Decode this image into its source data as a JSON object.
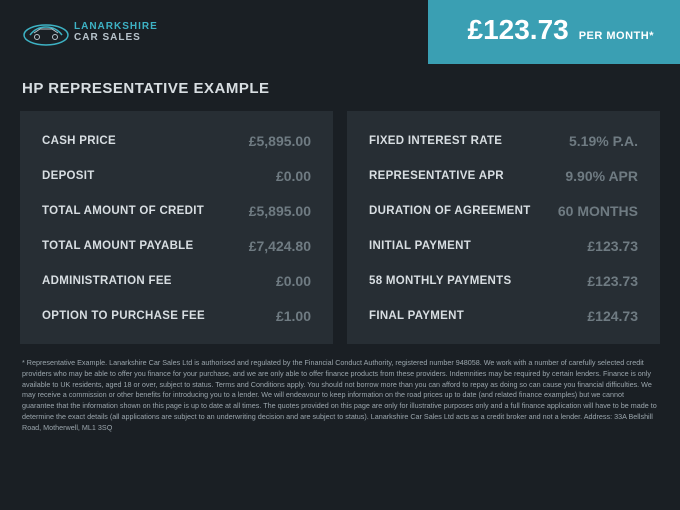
{
  "brand": {
    "line1": "LANARKSHIRE",
    "line2": "CAR SALES"
  },
  "price": {
    "amount": "£123.73",
    "suffix": "PER MONTH*"
  },
  "section_title": "HP REPRESENTATIVE EXAMPLE",
  "left": [
    {
      "label": "CASH PRICE",
      "value": "£5,895.00"
    },
    {
      "label": "DEPOSIT",
      "value": "£0.00"
    },
    {
      "label": "TOTAL AMOUNT OF CREDIT",
      "value": "£5,895.00"
    },
    {
      "label": "TOTAL AMOUNT PAYABLE",
      "value": "£7,424.80"
    },
    {
      "label": "ADMINISTRATION FEE",
      "value": "£0.00"
    },
    {
      "label": "OPTION TO PURCHASE FEE",
      "value": "£1.00"
    }
  ],
  "right": [
    {
      "label": "FIXED INTEREST RATE",
      "value": "5.19% P.A."
    },
    {
      "label": "REPRESENTATIVE APR",
      "value": "9.90% APR"
    },
    {
      "label": "DURATION OF AGREEMENT",
      "value": "60 MONTHS"
    },
    {
      "label": "INITIAL PAYMENT",
      "value": "£123.73"
    },
    {
      "label": "58 MONTHLY PAYMENTS",
      "value": "£123.73"
    },
    {
      "label": "FINAL PAYMENT",
      "value": "£124.73"
    }
  ],
  "disclaimer": "* Representative Example. Lanarkshire Car Sales Ltd is authorised and regulated by the Financial Conduct Authority, registered number 948058. We work with a number of carefully selected credit providers who may be able to offer you finance for your purchase, and we are only able to offer finance products from these providers. Indemnities may be required by certain lenders. Finance is only available to UK residents, aged 18 or over, subject to status. Terms and Conditions apply. You should not borrow more than you can afford to repay as doing so can cause you financial difficulties. We may receive a commission or other benefits for introducing you to a lender. We will endeavour to keep information on the road prices up to date (and related finance examples) but we cannot guarantee that the information shown on this page is up to date at all times. The quotes provided on this page are only for illustrative purposes only and a full finance application will have to be made to determine the exact details (all applications are subject to an underwriting decision and are subject to status). Lanarkshire Car Sales Ltd acts as a credit broker and not a lender. Address: 33A Bellshill Road, Motherwell, ML1 3SQ"
}
